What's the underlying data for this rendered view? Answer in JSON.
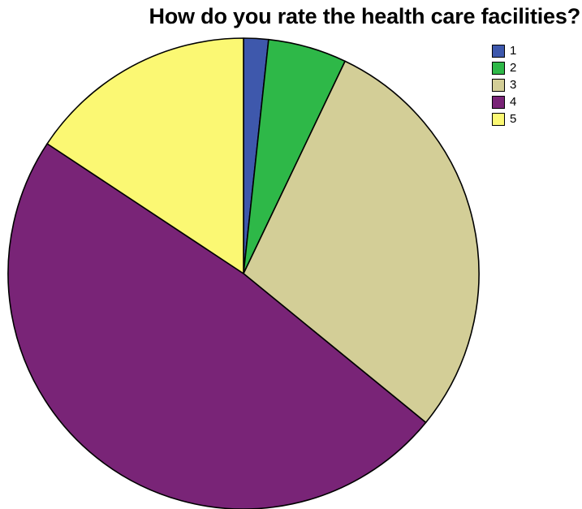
{
  "chart_data": {
    "type": "pie",
    "title": "How do you rate the health care facilities?",
    "legend_position": "top-right",
    "categories": [
      "1",
      "2",
      "3",
      "4",
      "5"
    ],
    "values": [
      1.7,
      5.4,
      28.8,
      48.4,
      15.7
    ],
    "colors": [
      "#3e58ac",
      "#2eb848",
      "#d3ce97",
      "#792477",
      "#fbf873"
    ],
    "start_angle_deg": 0,
    "direction": "clockwise"
  }
}
